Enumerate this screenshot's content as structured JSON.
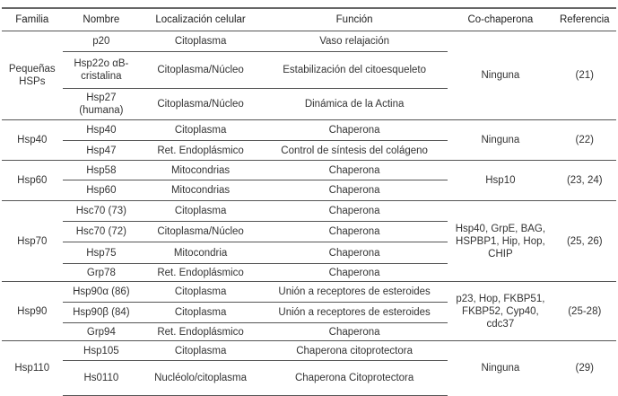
{
  "headers": [
    "Familia",
    "Nombre",
    "Localización celular",
    "Función",
    "Co-chaperona",
    "Referencia"
  ],
  "groups": [
    {
      "familia": "Pequeñas HSPs",
      "cochaperona": "Ninguna",
      "referencia": "(21)",
      "rows": [
        {
          "nombre": "p20",
          "localizacion": "Citoplasma",
          "funcion": "Vaso relajación"
        },
        {
          "nombre": "Hsp22o αB-cristalina",
          "localizacion": "Citoplasma/Núcleo",
          "funcion": "Estabilización del citoesqueleto"
        },
        {
          "nombre": "Hsp27 (humana)",
          "localizacion": "Citoplasma/Núcleo",
          "funcion": "Dinámica de la Actina"
        }
      ]
    },
    {
      "familia": "Hsp40",
      "cochaperona": "Ninguna",
      "referencia": "(22)",
      "rows": [
        {
          "nombre": "Hsp40",
          "localizacion": "Citoplasma",
          "funcion": "Chaperona"
        },
        {
          "nombre": "Hsp47",
          "localizacion": "Ret. Endoplásmico",
          "funcion": "Control de síntesis del colágeno"
        }
      ]
    },
    {
      "familia": "Hsp60",
      "cochaperona": "Hsp10",
      "referencia": "(23, 24)",
      "rows": [
        {
          "nombre": "Hsp58",
          "localizacion": "Mitocondrias",
          "funcion": "Chaperona"
        },
        {
          "nombre": "Hsp60",
          "localizacion": "Mitocondrias",
          "funcion": "Chaperona"
        }
      ]
    },
    {
      "familia": "Hsp70",
      "cochaperona": "Hsp40, GrpE, BAG, HSPBP1, Hip, Hop, CHIP",
      "referencia": "(25, 26)",
      "rows": [
        {
          "nombre": "Hsc70 (73)",
          "localizacion": "Citoplasma",
          "funcion": "Chaperona"
        },
        {
          "nombre": "Hsc70 (72)",
          "localizacion": "Citoplasma/Núcleo",
          "funcion": "Chaperona"
        },
        {
          "nombre": "Hsp75",
          "localizacion": "Mitocondria",
          "funcion": "Chaperona"
        },
        {
          "nombre": "Grp78",
          "localizacion": "Ret. Endoplásmico",
          "funcion": "Chaperona"
        }
      ]
    },
    {
      "familia": "Hsp90",
      "cochaperona": "p23, Hop, FKBP51, FKBP52, Cyp40, cdc37",
      "referencia": "(25-28)",
      "rows": [
        {
          "nombre": "Hsp90α (86)",
          "localizacion": "Citoplasma",
          "funcion": "Unión a receptores de esteroides"
        },
        {
          "nombre": "Hsp90β (84)",
          "localizacion": "Citoplasma",
          "funcion": "Unión a receptores de esteroides"
        },
        {
          "nombre": "Grp94",
          "localizacion": "Ret. Endoplásmico",
          "funcion": "Chaperona"
        }
      ]
    },
    {
      "familia": "Hsp110",
      "cochaperona": "Ninguna",
      "referencia": "(29)",
      "rows": [
        {
          "nombre": "Hsp105",
          "localizacion": "Citoplasma",
          "funcion": "Chaperona citoprotectora"
        },
        {
          "nombre": "Hs0110",
          "localizacion": "Nucléolo/citoplasma",
          "funcion": "Chaperona Citoprotectora"
        }
      ]
    }
  ]
}
